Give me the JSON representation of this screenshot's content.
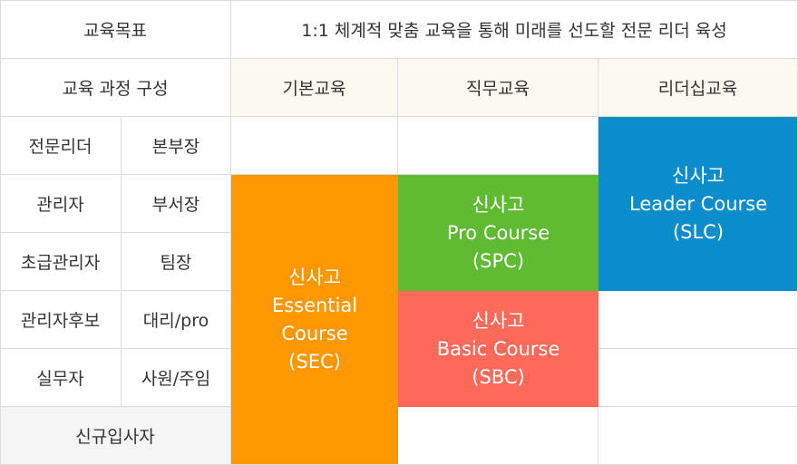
{
  "header": {
    "goal_label": "교육목표",
    "goal_text": "1:1 체계적 맞춤 교육을 통해 미래를 선도할 전문 리더 육성",
    "structure_label": "교육 과정 구성",
    "columns": [
      "기본교육",
      "직무교육",
      "리더십교육"
    ]
  },
  "rows": [
    {
      "level": "전문리더",
      "position": "본부장"
    },
    {
      "level": "관리자",
      "position": "부서장"
    },
    {
      "level": "초급관리자",
      "position": "팀장"
    },
    {
      "level": "관리자후보",
      "position": "대리/pro"
    },
    {
      "level": "실무자",
      "position": "사원/주임"
    }
  ],
  "new_hire": "신규입사자",
  "courses": {
    "sec": {
      "lines": [
        "신사고",
        "Essential",
        "Course",
        "(SEC)"
      ],
      "color": "#ff9800"
    },
    "spc": {
      "lines": [
        "신사고",
        "Pro Course",
        "(SPC)"
      ],
      "color": "#5fbb31"
    },
    "sbc": {
      "lines": [
        "신사고",
        "Basic Course",
        "(SBC)"
      ],
      "color": "#fd6a5a"
    },
    "slc": {
      "lines": [
        "신사고",
        "Leader Course",
        "(SLC)"
      ],
      "color": "#0a8dca"
    }
  }
}
